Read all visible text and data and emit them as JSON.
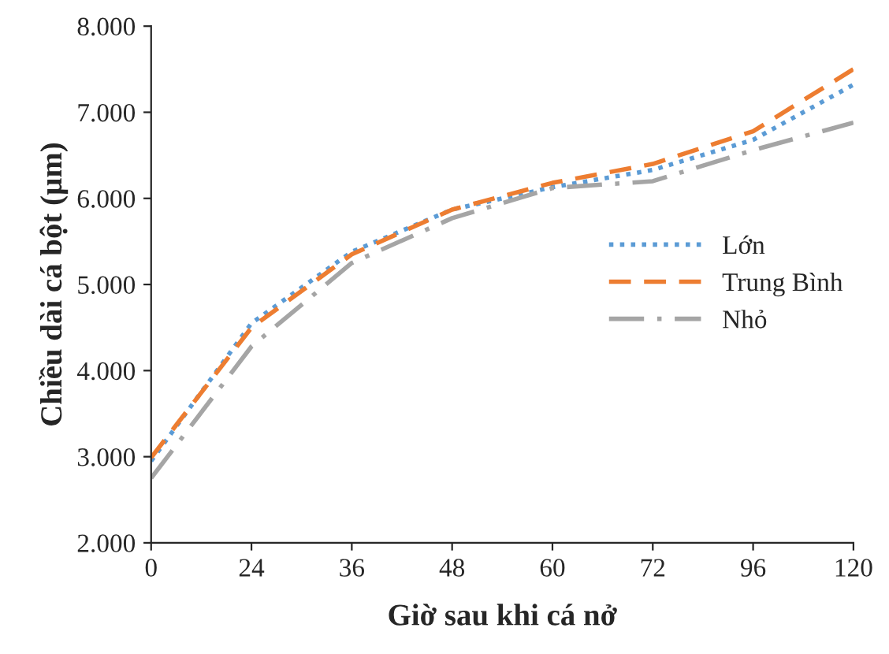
{
  "chart_data": {
    "type": "line",
    "xlabel": "Giờ sau khi cá nở",
    "ylabel": "Chiều dài cá bột (µm)",
    "categories": [
      "0",
      "24",
      "36",
      "48",
      "60",
      "72",
      "96",
      "120"
    ],
    "series": [
      {
        "name": "Lớn",
        "color": "#5b9bd5",
        "line_style": "dotted",
        "values": [
          2950,
          4550,
          5380,
          5870,
          6130,
          6330,
          6680,
          7320
        ]
      },
      {
        "name": "Trung Bình",
        "color": "#ed7d31",
        "line_style": "dashed",
        "values": [
          2990,
          4500,
          5350,
          5870,
          6180,
          6400,
          6780,
          7500
        ]
      },
      {
        "name": "Nhỏ",
        "color": "#a5a5a5",
        "line_style": "dashdot",
        "values": [
          2750,
          4280,
          5250,
          5770,
          6120,
          6200,
          6560,
          6880
        ]
      }
    ],
    "ylim": [
      2000,
      8000
    ],
    "yticks": [
      {
        "value": 2000,
        "label": "2.000"
      },
      {
        "value": 3000,
        "label": "3.000"
      },
      {
        "value": 4000,
        "label": "4.000"
      },
      {
        "value": 5000,
        "label": "5.000"
      },
      {
        "value": 6000,
        "label": "6.000"
      },
      {
        "value": 7000,
        "label": "7.000"
      },
      {
        "value": 8000,
        "label": "8.000"
      }
    ],
    "grid": false,
    "legend": "right",
    "marker": "none"
  }
}
